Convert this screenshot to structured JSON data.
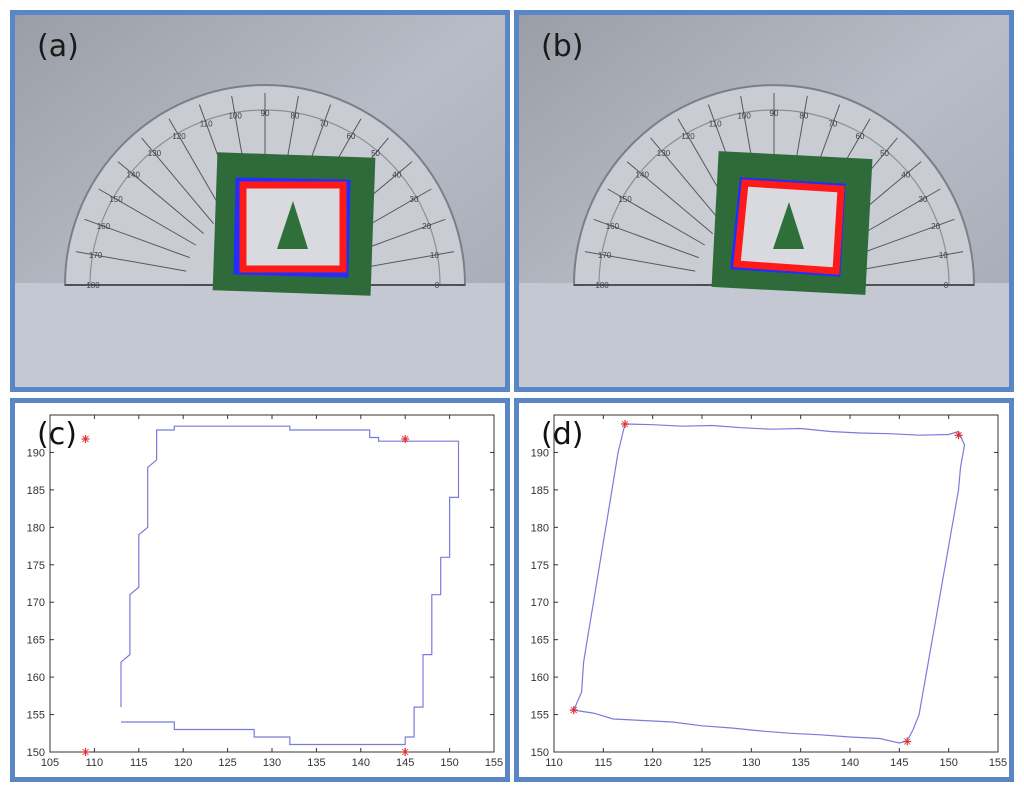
{
  "panels": {
    "a": {
      "label": "(a)"
    },
    "b": {
      "label": "(b)"
    },
    "c": {
      "label": "(c)"
    },
    "d": {
      "label": "(d)"
    }
  },
  "colors": {
    "frame": "#5b86c4",
    "green_card": "#2f6b3a",
    "contour_red": "#ff1a1a",
    "contour_blue": "#1f2fff",
    "plot_line": "#7b7bdc",
    "corner_marker": "#e03030"
  },
  "protractor_scale": [
    "180",
    "170",
    "160",
    "150",
    "140",
    "130",
    "120",
    "110",
    "100",
    "90",
    "80",
    "70",
    "60",
    "50",
    "40",
    "30",
    "20",
    "10",
    "0"
  ],
  "chart_data": [
    {
      "type": "line",
      "panel": "c",
      "xlim": [
        105,
        155
      ],
      "ylim": [
        150,
        195
      ],
      "xticks": [
        105,
        110,
        115,
        120,
        125,
        130,
        135,
        140,
        145,
        150,
        155
      ],
      "yticks": [
        150,
        155,
        160,
        165,
        170,
        175,
        180,
        185,
        190
      ],
      "series": [
        {
          "style": "line",
          "x": [
            113,
            113,
            114,
            114,
            115,
            115,
            116,
            116,
            117,
            117,
            119,
            119,
            122,
            122,
            132,
            132,
            141,
            141,
            142,
            142,
            149,
            149,
            151,
            151,
            150,
            150,
            149,
            149,
            148,
            148,
            147,
            147,
            146,
            146,
            145,
            145,
            140,
            140,
            132,
            132,
            128,
            128,
            122,
            122,
            119,
            119,
            113
          ],
          "y": [
            156,
            162,
            163,
            171,
            172,
            179,
            180,
            188,
            189,
            193,
            193,
            193.5,
            193.5,
            193.5,
            193.5,
            193,
            193,
            192,
            192,
            191.5,
            191.5,
            191.5,
            191.5,
            184,
            184,
            176,
            176,
            171,
            171,
            163,
            163,
            156,
            156,
            152,
            152,
            151,
            151,
            151,
            151,
            152,
            152,
            153,
            153,
            153,
            153,
            154,
            154
          ]
        },
        {
          "style": "markers",
          "x": [
            109,
            145,
            109,
            145
          ],
          "y": [
            191.8,
            191.8,
            150,
            150
          ]
        }
      ]
    },
    {
      "type": "line",
      "panel": "d",
      "xlim": [
        110,
        155
      ],
      "ylim": [
        150,
        195
      ],
      "xticks": [
        110,
        115,
        120,
        125,
        130,
        135,
        140,
        145,
        150,
        155
      ],
      "yticks": [
        150,
        155,
        160,
        165,
        170,
        175,
        180,
        185,
        190
      ],
      "series": [
        {
          "style": "line",
          "x": [
            117.2,
            120,
            123,
            126,
            129,
            132,
            135,
            138,
            141,
            144,
            147,
            150,
            151,
            151.6,
            151.2,
            151,
            150.6,
            150.2,
            149.8,
            149.4,
            149,
            148.6,
            148.2,
            147.8,
            147.4,
            147,
            146.4,
            146,
            145.6,
            145,
            143,
            140,
            137,
            134,
            131,
            128,
            125,
            122,
            119,
            116,
            114,
            112,
            112.8,
            113,
            113.5,
            114,
            114.5,
            115,
            115.5,
            116,
            116.5,
            117.2
          ],
          "y": [
            193.8,
            193.7,
            193.5,
            193.6,
            193.3,
            193.1,
            193.2,
            192.8,
            192.6,
            192.5,
            192.3,
            192.4,
            192.8,
            191,
            188,
            185,
            182,
            179,
            176,
            173,
            170,
            167,
            164,
            161,
            158,
            155,
            153,
            152,
            151.4,
            151.2,
            151.8,
            152,
            152.3,
            152.5,
            152.8,
            153.2,
            153.5,
            154,
            154.2,
            154.4,
            155.2,
            155.6,
            158,
            162,
            166,
            170,
            174,
            178,
            182,
            186,
            190,
            193.8
          ]
        },
        {
          "style": "markers",
          "x": [
            117.2,
            151,
            112,
            145.8
          ],
          "y": [
            193.8,
            192.3,
            155.6,
            151.4
          ]
        }
      ]
    }
  ]
}
